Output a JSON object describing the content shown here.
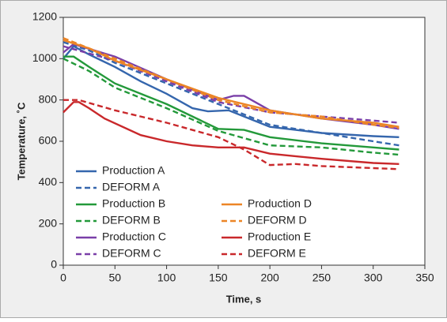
{
  "chart_data": {
    "type": "line",
    "x_label": "Time, s",
    "y_label": "Temperature, ˚C",
    "xlim": [
      0,
      350
    ],
    "xticks": [
      0,
      50,
      100,
      150,
      200,
      250,
      300,
      350
    ],
    "ylim": [
      0,
      1200
    ],
    "yticks": [
      0,
      200,
      400,
      600,
      800,
      1000,
      1200
    ],
    "series": [
      {
        "name": "Production A",
        "color": "#3566ad",
        "dashed": false,
        "x": [
          0,
          10,
          25,
          50,
          75,
          100,
          125,
          140,
          160,
          175,
          200,
          250,
          300,
          325
        ],
        "values": [
          1000,
          1060,
          1020,
          960,
          890,
          830,
          760,
          745,
          750,
          720,
          670,
          640,
          625,
          620
        ]
      },
      {
        "name": "DEFORM A",
        "color": "#3566ad",
        "dashed": true,
        "x": [
          0,
          25,
          50,
          100,
          150,
          200,
          250,
          300,
          325
        ],
        "values": [
          1080,
          1040,
          980,
          880,
          780,
          680,
          640,
          600,
          580
        ]
      },
      {
        "name": "Production B",
        "color": "#23993a",
        "dashed": false,
        "x": [
          0,
          10,
          25,
          50,
          100,
          150,
          175,
          200,
          250,
          300,
          325
        ],
        "values": [
          1010,
          1010,
          960,
          880,
          780,
          660,
          655,
          620,
          590,
          570,
          560
        ]
      },
      {
        "name": "DEFORM B",
        "color": "#23993a",
        "dashed": true,
        "x": [
          0,
          25,
          50,
          100,
          150,
          200,
          250,
          300,
          325
        ],
        "values": [
          1000,
          940,
          860,
          760,
          650,
          580,
          570,
          545,
          535
        ]
      },
      {
        "name": "Production C",
        "color": "#7a3fa8",
        "dashed": false,
        "x": [
          0,
          10,
          50,
          100,
          150,
          165,
          175,
          200,
          250,
          300,
          325
        ],
        "values": [
          1030,
          1070,
          1010,
          900,
          800,
          820,
          820,
          750,
          710,
          680,
          660
        ]
      },
      {
        "name": "DEFORM C",
        "color": "#7a3fa8",
        "dashed": true,
        "x": [
          0,
          50,
          100,
          150,
          200,
          250,
          300,
          325
        ],
        "values": [
          1060,
          990,
          890,
          790,
          740,
          720,
          700,
          690
        ]
      },
      {
        "name": "Production D",
        "color": "#ec8526",
        "dashed": false,
        "x": [
          0,
          25,
          50,
          100,
          150,
          200,
          250,
          300,
          325
        ],
        "values": [
          1090,
          1050,
          990,
          900,
          810,
          750,
          710,
          690,
          670
        ]
      },
      {
        "name": "DEFORM D",
        "color": "#ec8526",
        "dashed": true,
        "x": [
          0,
          50,
          100,
          150,
          200,
          250,
          300,
          325
        ],
        "values": [
          1100,
          1000,
          900,
          800,
          740,
          720,
          680,
          665
        ]
      },
      {
        "name": "Production E",
        "color": "#c9282b",
        "dashed": false,
        "x": [
          0,
          10,
          15,
          25,
          40,
          75,
          100,
          125,
          150,
          175,
          200,
          250,
          300,
          325
        ],
        "values": [
          740,
          790,
          790,
          760,
          710,
          630,
          600,
          580,
          570,
          570,
          540,
          515,
          495,
          490
        ]
      },
      {
        "name": "DEFORM E",
        "color": "#c9282b",
        "dashed": true,
        "x": [
          0,
          15,
          50,
          100,
          150,
          175,
          200,
          225,
          250,
          300,
          325
        ],
        "values": [
          800,
          800,
          750,
          690,
          620,
          560,
          485,
          490,
          480,
          470,
          465
        ]
      }
    ]
  }
}
